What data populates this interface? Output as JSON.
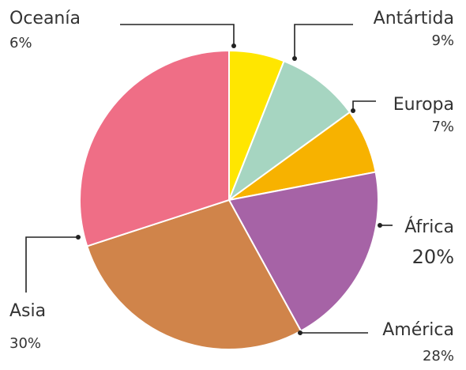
{
  "chart_data": {
    "type": "pie",
    "title": "",
    "slices": [
      {
        "label": "Oceanía",
        "value": 6,
        "value_label": "6%",
        "color": "#FFE600"
      },
      {
        "label": "Antártida",
        "value": 9,
        "value_label": "9%",
        "color": "#A6D5C1"
      },
      {
        "label": "Europa",
        "value": 7,
        "value_label": "7%",
        "color": "#F7B200"
      },
      {
        "label": "África",
        "value": 20,
        "value_label": "20%",
        "color": "#A663A6"
      },
      {
        "label": "América",
        "value": 28,
        "value_label": "28%",
        "color": "#D0844A"
      },
      {
        "label": "Asia",
        "value": 30,
        "value_label": "30%",
        "color": "#EF6E86"
      }
    ],
    "start": "12 o'clock",
    "direction": "clockwise",
    "legend": "none"
  }
}
